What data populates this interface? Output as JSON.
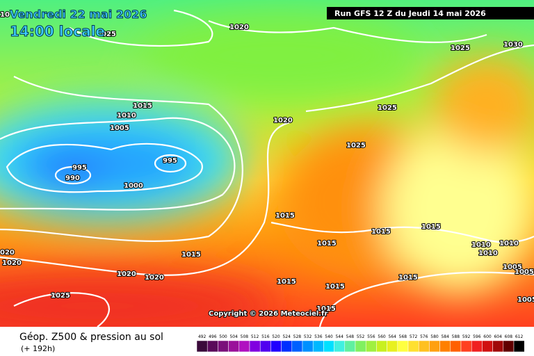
{
  "header": {
    "date": "Vendredi 22 mai 2026",
    "time": "14:00 locale",
    "run": "Run GFS 12 Z du Jeudi 14 mai 2026"
  },
  "isobar_labels": [
    "10",
    "1020",
    "025",
    "1025",
    "1030",
    "1015",
    "1010",
    "1005",
    "1020",
    "1025",
    "1025",
    "995",
    "995",
    "990",
    "1000",
    "1015",
    "1015",
    "1015",
    "1015",
    "1010",
    "1010",
    "1010",
    "1015",
    "020",
    "1020",
    "1020",
    "1020",
    "1005",
    "1005",
    "1015",
    "1015",
    "1015",
    "1025",
    "1015",
    "1005"
  ],
  "copyright": "Copyright © 2026 Meteociel.fr",
  "footer": {
    "title": "Géop. Z500 & pression au sol",
    "lead": "(+ 192h)"
  },
  "scale": {
    "labels": [
      492,
      496,
      500,
      504,
      508,
      512,
      516,
      520,
      524,
      528,
      532,
      536,
      540,
      544,
      548,
      552,
      556,
      560,
      564,
      568,
      572,
      576,
      580,
      584,
      588,
      592,
      596,
      600,
      604,
      608,
      612
    ],
    "colors": [
      "#3a0a3a",
      "#5a0a5a",
      "#7a107a",
      "#9a109a",
      "#b010c0",
      "#8000e0",
      "#5000f0",
      "#2000ff",
      "#0030ff",
      "#0060ff",
      "#0090ff",
      "#00b8ff",
      "#00e0ff",
      "#40f0e0",
      "#60f0a0",
      "#80f060",
      "#a0f040",
      "#c8f020",
      "#e8f020",
      "#ffff40",
      "#ffe030",
      "#ffc020",
      "#ffa010",
      "#ff8000",
      "#ff6000",
      "#ff4020",
      "#f02020",
      "#d01010",
      "#a00808",
      "#600000",
      "#000000"
    ]
  }
}
